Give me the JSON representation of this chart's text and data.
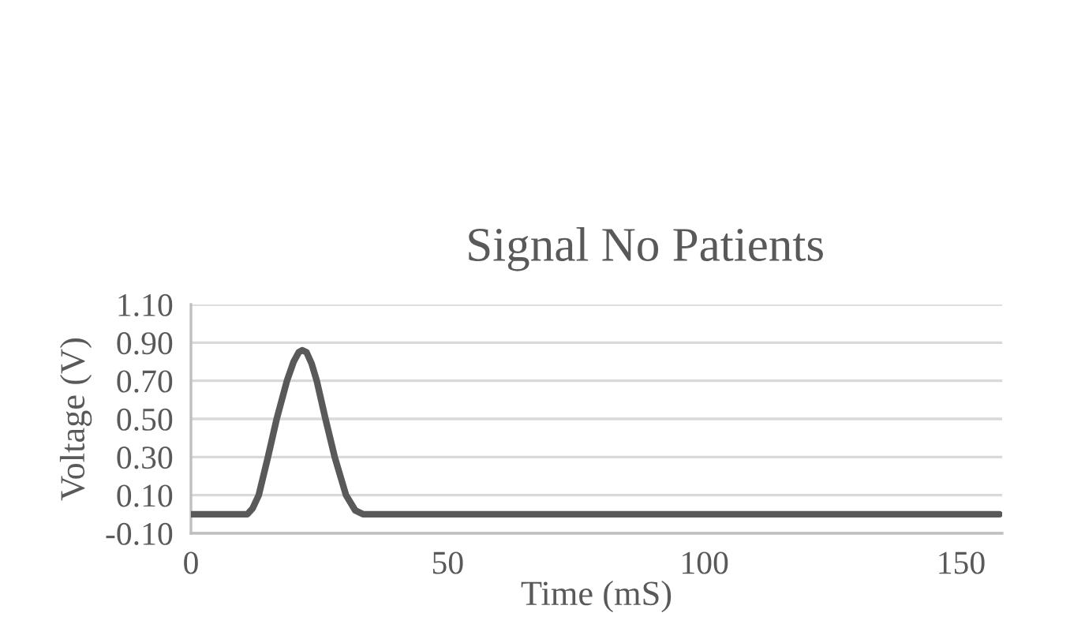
{
  "chart_data": {
    "type": "line",
    "title": "Signal No Patients",
    "xlabel": "Time (mS)",
    "ylabel": "Voltage (V)",
    "series": [
      {
        "color": "#595959",
        "x": [
          0,
          5,
          10,
          11,
          12,
          13.2,
          15,
          16.7,
          18.7,
          20,
          21,
          21.7,
          22.5,
          23.5,
          24.5,
          26.2,
          28,
          30.2,
          32,
          33.5,
          40,
          60,
          80,
          100,
          120,
          140,
          157.5
        ],
        "values": [
          0,
          0,
          0,
          0,
          0.03,
          0.1,
          0.3,
          0.5,
          0.7,
          0.8,
          0.85,
          0.86,
          0.85,
          0.79,
          0.7,
          0.5,
          0.3,
          0.1,
          0.02,
          0,
          0,
          0,
          0,
          0,
          0,
          0,
          0
        ]
      }
    ],
    "xlim": [
      0,
      158
    ],
    "xticks": [
      0,
      50,
      100,
      150
    ],
    "ylim": [
      -0.1,
      1.1
    ],
    "yticks": [
      {
        "value": -0.1,
        "label": "-0.10"
      },
      {
        "value": 0.1,
        "label": "0.10"
      },
      {
        "value": 0.3,
        "label": "0.30"
      },
      {
        "value": 0.5,
        "label": "0.50"
      },
      {
        "value": 0.7,
        "label": "0.70"
      },
      {
        "value": 0.9,
        "label": "0.90"
      },
      {
        "value": 1.1,
        "label": "1.10"
      }
    ],
    "grid": "y",
    "marker": "none",
    "line_style": "solid"
  }
}
